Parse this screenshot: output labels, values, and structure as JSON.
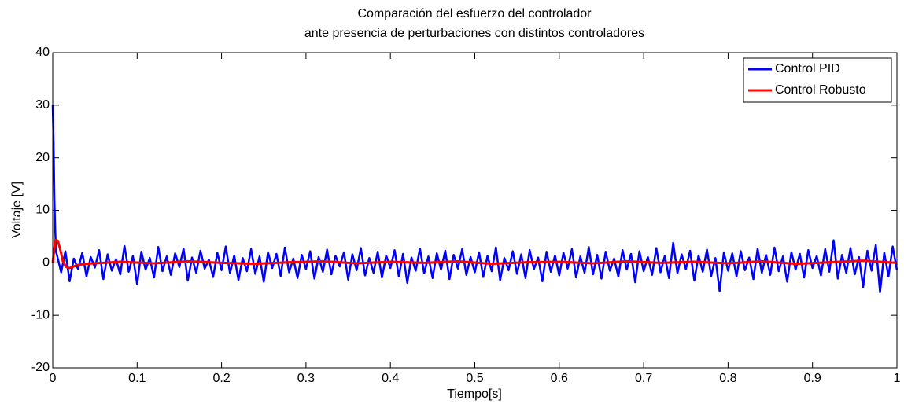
{
  "chart_data": {
    "type": "line",
    "title": [
      "Comparación del esfuerzo del controlador",
      "ante presencia de perturbaciones con distintos controladores"
    ],
    "xlabel": "Tiempo[s]",
    "ylabel": "Voltaje [V]",
    "xlim": [
      0,
      1
    ],
    "ylim": [
      -20,
      40
    ],
    "xticks": [
      0,
      0.1,
      0.2,
      0.3,
      0.4,
      0.5,
      0.6,
      0.7,
      0.8,
      0.9,
      1
    ],
    "yticks": [
      -20,
      -10,
      0,
      10,
      20,
      30,
      40
    ],
    "grid": false,
    "legend": "top right",
    "series": [
      {
        "name": "Control PID",
        "color": "#0000ff",
        "x": [
          0,
          0.001,
          0.002,
          0.003,
          0.004,
          0.005,
          0.01,
          0.015,
          0.02,
          0.025,
          0.03,
          0.035,
          0.04,
          0.045,
          0.05,
          0.055,
          0.06,
          0.065,
          0.07,
          0.075,
          0.08,
          0.085,
          0.09,
          0.095,
          0.1,
          0.105,
          0.11,
          0.115,
          0.12,
          0.125,
          0.13,
          0.135,
          0.14,
          0.145,
          0.15,
          0.155,
          0.16,
          0.165,
          0.17,
          0.175,
          0.18,
          0.185,
          0.19,
          0.195,
          0.2,
          0.205,
          0.21,
          0.215,
          0.22,
          0.225,
          0.23,
          0.235,
          0.24,
          0.245,
          0.25,
          0.255,
          0.26,
          0.265,
          0.27,
          0.275,
          0.28,
          0.285,
          0.29,
          0.295,
          0.3,
          0.305,
          0.31,
          0.315,
          0.32,
          0.325,
          0.33,
          0.335,
          0.34,
          0.345,
          0.35,
          0.355,
          0.36,
          0.365,
          0.37,
          0.375,
          0.38,
          0.385,
          0.39,
          0.395,
          0.4,
          0.405,
          0.41,
          0.415,
          0.42,
          0.425,
          0.43,
          0.435,
          0.44,
          0.445,
          0.45,
          0.455,
          0.46,
          0.465,
          0.47,
          0.475,
          0.48,
          0.485,
          0.49,
          0.495,
          0.5,
          0.505,
          0.51,
          0.515,
          0.52,
          0.525,
          0.53,
          0.535,
          0.54,
          0.545,
          0.55,
          0.555,
          0.56,
          0.565,
          0.57,
          0.575,
          0.58,
          0.585,
          0.59,
          0.595,
          0.6,
          0.605,
          0.61,
          0.615,
          0.62,
          0.625,
          0.63,
          0.635,
          0.64,
          0.645,
          0.65,
          0.655,
          0.66,
          0.665,
          0.67,
          0.675,
          0.68,
          0.685,
          0.69,
          0.695,
          0.7,
          0.705,
          0.71,
          0.715,
          0.72,
          0.725,
          0.73,
          0.735,
          0.74,
          0.745,
          0.75,
          0.755,
          0.76,
          0.765,
          0.77,
          0.775,
          0.78,
          0.785,
          0.79,
          0.795,
          0.8,
          0.805,
          0.81,
          0.815,
          0.82,
          0.825,
          0.83,
          0.835,
          0.84,
          0.845,
          0.85,
          0.855,
          0.86,
          0.865,
          0.87,
          0.875,
          0.88,
          0.885,
          0.89,
          0.895,
          0.9,
          0.905,
          0.91,
          0.915,
          0.92,
          0.925,
          0.93,
          0.935,
          0.94,
          0.945,
          0.95,
          0.955,
          0.96,
          0.965,
          0.97,
          0.975,
          0.98,
          0.985,
          0.99,
          0.995,
          1
        ],
        "values": [
          30,
          23,
          12,
          6,
          2,
          1.5,
          -1.8,
          2.2,
          -3.5,
          0.8,
          -1.2,
          1.9,
          -2.6,
          1.1,
          -0.9,
          2.4,
          -3.1,
          1.6,
          -1.5,
          0.7,
          -2.2,
          3.2,
          -1.7,
          1.3,
          -4.1,
          2.1,
          -1.3,
          0.9,
          -2.8,
          3.0,
          -1.6,
          1.2,
          -2.3,
          1.8,
          -0.8,
          2.7,
          -3.4,
          1.0,
          -1.9,
          2.3,
          -1.1,
          0.6,
          -2.7,
          1.9,
          -1.4,
          3.1,
          -2.0,
          1.4,
          -3.3,
          0.9,
          -1.6,
          2.6,
          -2.1,
          1.2,
          -3.6,
          2.0,
          -1.0,
          1.7,
          -2.5,
          2.9,
          -1.8,
          0.8,
          -2.9,
          1.5,
          -1.2,
          2.2,
          -3.0,
          1.1,
          -1.7,
          2.5,
          -2.2,
          1.3,
          -0.7,
          2.0,
          -3.2,
          1.6,
          -1.4,
          2.8,
          -2.4,
          0.9,
          -1.9,
          2.1,
          -2.8,
          1.4,
          -1.0,
          2.4,
          -2.6,
          1.7,
          -3.8,
          1.0,
          -1.5,
          2.7,
          -2.0,
          1.2,
          -2.9,
          1.8,
          -1.3,
          2.3,
          -3.1,
          1.5,
          -1.1,
          2.6,
          -2.3,
          1.1,
          -1.8,
          2.0,
          -2.7,
          1.3,
          -1.6,
          2.9,
          -3.3,
          0.9,
          -1.4,
          2.2,
          -2.1,
          1.6,
          -2.9,
          2.4,
          -1.2,
          1.0,
          -3.5,
          2.1,
          -1.7,
          1.4,
          -2.4,
          1.9,
          -1.1,
          2.6,
          -2.8,
          1.2,
          -1.9,
          3.0,
          -2.2,
          1.5,
          -3.0,
          2.1,
          -1.5,
          0.8,
          -2.6,
          2.4,
          -1.3,
          1.7,
          -3.7,
          2.2,
          -1.6,
          1.1,
          -2.3,
          2.8,
          -1.8,
          1.3,
          -2.9,
          3.8,
          -2.0,
          1.6,
          -1.2,
          2.3,
          -3.4,
          1.4,
          -1.7,
          2.5,
          -2.5,
          0.9,
          -5.4,
          2.0,
          -1.5,
          1.8,
          -2.6,
          2.2,
          -1.4,
          1.0,
          -3.1,
          2.7,
          -1.9,
          1.5,
          -2.3,
          2.9,
          -1.6,
          1.2,
          -3.6,
          2.0,
          -1.3,
          1.7,
          -2.8,
          2.4,
          -1.0,
          1.3,
          -2.4,
          2.6,
          -1.7,
          4.3,
          -3.0,
          1.5,
          -1.9,
          2.8,
          -2.2,
          1.1,
          -4.6,
          2.3,
          -1.5,
          3.4,
          -5.6,
          1.9,
          -2.6,
          3.1,
          -1.4
        ]
      },
      {
        "name": "Control Robusto",
        "color": "#ff0000",
        "x": [
          0,
          0.003,
          0.006,
          0.009,
          0.012,
          0.016,
          0.02,
          0.025,
          0.03,
          0.04,
          0.08,
          0.12,
          0.16,
          0.2,
          0.24,
          0.28,
          0.32,
          0.36,
          0.4,
          0.44,
          0.48,
          0.52,
          0.56,
          0.6,
          0.64,
          0.68,
          0.72,
          0.76,
          0.8,
          0.84,
          0.88,
          0.92,
          0.96,
          1
        ],
        "values": [
          0,
          4.3,
          4.2,
          2.5,
          0.3,
          -0.8,
          -1.0,
          -0.7,
          -0.4,
          -0.2,
          0.2,
          -0.1,
          0.3,
          0.0,
          -0.2,
          0.1,
          0.3,
          -0.1,
          0.2,
          0.0,
          0.3,
          -0.2,
          0.1,
          0.2,
          -0.1,
          0.3,
          0.0,
          0.2,
          -0.1,
          0.3,
          -0.2,
          0.1,
          0.4,
          0.0
        ]
      }
    ]
  }
}
